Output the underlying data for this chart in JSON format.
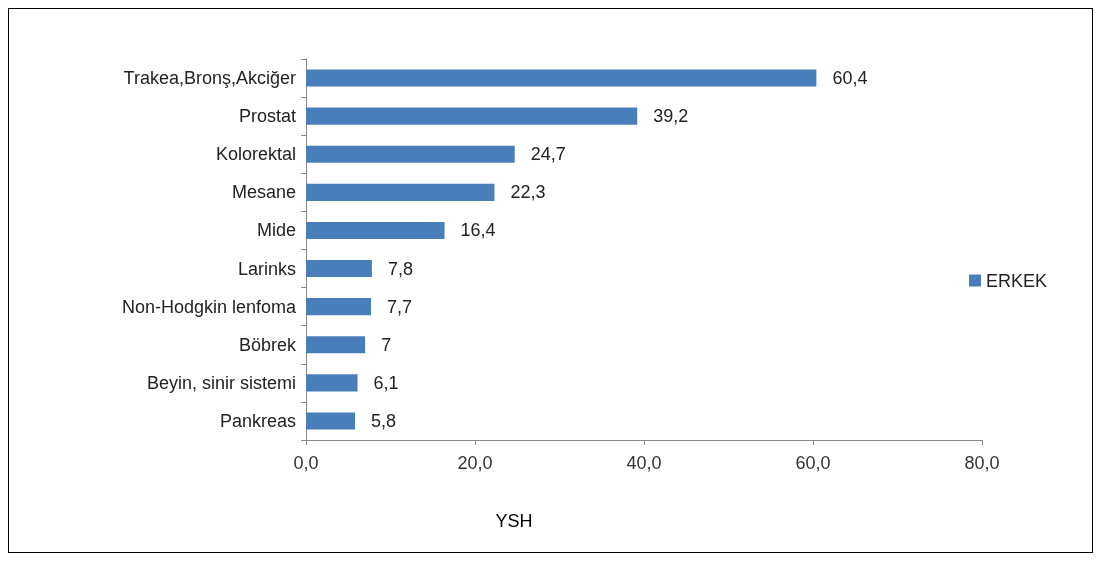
{
  "chart_data": {
    "type": "bar",
    "orientation": "horizontal",
    "xlabel": "YSH",
    "categories": [
      "Trakea,Bronş,Akciğer",
      "Prostat",
      "Kolorektal",
      "Mesane",
      "Mide",
      "Larinks",
      "Non-Hodgkin lenfoma",
      "Böbrek",
      "Beyin, sinir sistemi",
      "Pankreas"
    ],
    "series": [
      {
        "name": "ERKEK",
        "color": "#4a7ebb",
        "values": [
          60.4,
          39.2,
          24.7,
          22.3,
          16.4,
          7.8,
          7.7,
          7,
          6.1,
          5.8
        ],
        "value_labels": [
          "60,4",
          "39,2",
          "24,7",
          "22,3",
          "16,4",
          "7,8",
          "7,7",
          "7",
          "6,1",
          "5,8"
        ]
      }
    ],
    "xlim": [
      0,
      80
    ],
    "xticks": [
      {
        "value": 0,
        "label": "0,0"
      },
      {
        "value": 20,
        "label": "20,0"
      },
      {
        "value": 40,
        "label": "40,0"
      },
      {
        "value": 60,
        "label": "60,0"
      },
      {
        "value": 80,
        "label": "80,0"
      }
    ],
    "grid": false,
    "legend": "right"
  }
}
